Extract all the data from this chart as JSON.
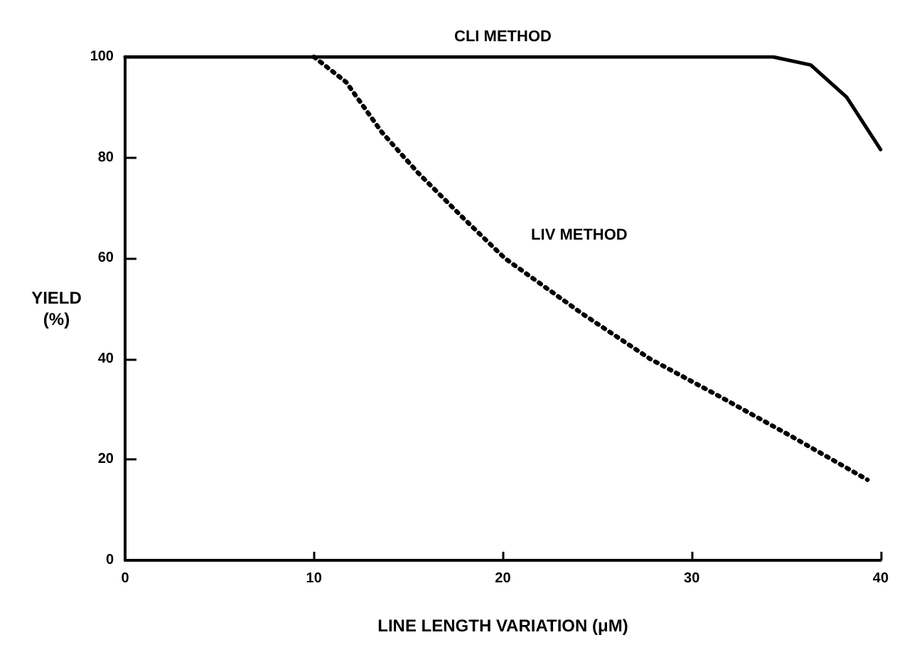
{
  "chart_data": {
    "type": "line",
    "xlabel": "LINE LENGTH VARIATION (μM)",
    "ylabel": "YIELD\n(%)",
    "series": [
      {
        "name": "CLI METHOD",
        "color": "#000000",
        "line_style": "solid",
        "x": [
          0,
          10,
          20,
          30,
          34.3,
          36.3,
          38.2,
          40
        ],
        "values": [
          100,
          100,
          100,
          100,
          100,
          98.4,
          92,
          81.6
        ]
      },
      {
        "name": "LIV METHOD",
        "color": "#000000",
        "line_style": "dotted",
        "x": [
          10,
          11.7,
          13.6,
          15.5,
          17.9,
          20.1,
          24.2,
          27.8,
          31.5,
          35.1,
          39.3
        ],
        "values": [
          100,
          95,
          85,
          77,
          68,
          60,
          49,
          40,
          32.5,
          25,
          16
        ]
      }
    ],
    "xlim": [
      0,
      40
    ],
    "xticks": [
      0,
      10,
      20,
      30,
      40
    ],
    "ylim": [
      0,
      100
    ],
    "yticks": [
      0,
      20,
      40,
      60,
      80,
      100
    ],
    "grid": false,
    "legend": false,
    "marker": "none"
  }
}
